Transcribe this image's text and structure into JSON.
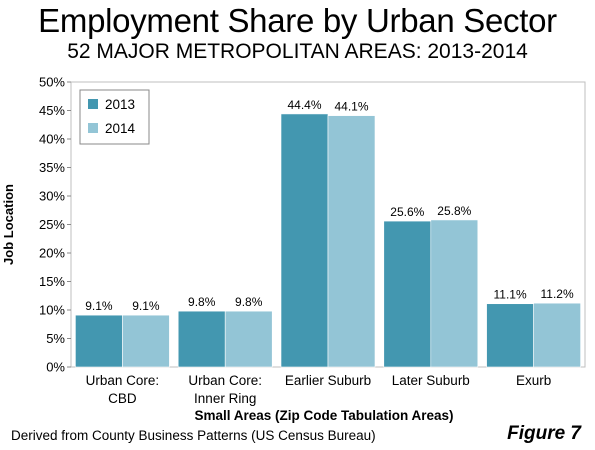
{
  "chart_data": {
    "type": "bar",
    "title": "Employment Share by Urban Sector",
    "subtitle": "52 MAJOR METROPOLITAN AREAS: 2013-2014",
    "xlabel": "Small Areas (Zip Code Tabulation Areas)",
    "ylabel": "Job Location",
    "categories": [
      [
        "Urban Core:",
        "CBD"
      ],
      [
        "Urban Core:",
        "Inner Ring"
      ],
      [
        "Earlier Suburb"
      ],
      [
        "Later Suburb"
      ],
      [
        "Exurb"
      ]
    ],
    "series": [
      {
        "name": "2013",
        "color": "#4397b0",
        "values": [
          9.1,
          9.8,
          44.4,
          25.6,
          11.1
        ],
        "labels": [
          "9.1%",
          "9.8%",
          "44.4%",
          "25.6%",
          "11.1%"
        ]
      },
      {
        "name": "2014",
        "color": "#93c5d6",
        "values": [
          9.1,
          9.8,
          44.1,
          25.8,
          11.2
        ],
        "labels": [
          "9.1%",
          "9.8%",
          "44.1%",
          "25.8%",
          "11.2%"
        ]
      }
    ],
    "ylim": [
      0,
      50
    ],
    "yticks": [
      0,
      5,
      10,
      15,
      20,
      25,
      30,
      35,
      40,
      45,
      50
    ],
    "ytick_labels": [
      "0%",
      "5%",
      "10%",
      "15%",
      "20%",
      "25%",
      "30%",
      "35%",
      "40%",
      "45%",
      "50%"
    ],
    "grid": false,
    "legend_position": "top-left"
  },
  "footer": {
    "source": "Derived from County Business Patterns (US Census Bureau)",
    "figure": "Figure 7"
  }
}
